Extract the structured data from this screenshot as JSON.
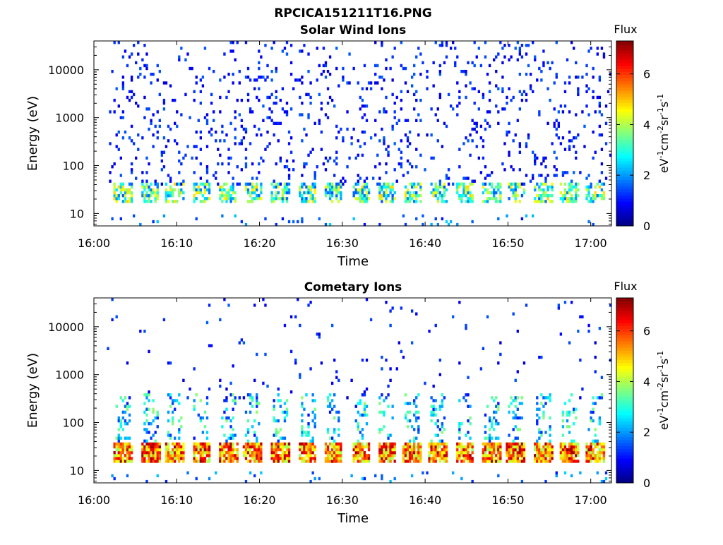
{
  "figure_title": "RPCICA151211T16.PNG",
  "colormap": "jet",
  "chart_data": [
    {
      "type": "heatmap",
      "title": "Solar Wind Ions",
      "xlabel": "Time",
      "ylabel": "Energy (eV)",
      "x_tick_labels": [
        "16:00",
        "16:10",
        "16:20",
        "16:30",
        "16:40",
        "16:50",
        "17:00"
      ],
      "xlim_minutes": [
        0,
        62.5
      ],
      "y_scale": "log",
      "ylim": [
        5.5,
        40000
      ],
      "y_tick_labels": [
        "10",
        "100",
        "1000",
        "10000"
      ],
      "y_tick_values": [
        10,
        100,
        1000,
        10000
      ],
      "colorbar": {
        "label": "eV-1cm-2sr-1s-1",
        "title": "Flux",
        "range": [
          0,
          7.3
        ],
        "tick_labels": [
          "0",
          "2",
          "4",
          "6"
        ],
        "tick_values": [
          0,
          2,
          4,
          6
        ]
      },
      "description": "Sparse low flux (~0.5-1.5) scattered from ~40 eV to 40 keV; higher flux (2-5) band near 20-40 eV in bursts roughly every 3 minutes"
    },
    {
      "type": "heatmap",
      "title": "Cometary Ions",
      "xlabel": "Time",
      "ylabel": "Energy (eV)",
      "x_tick_labels": [
        "16:00",
        "16:10",
        "16:20",
        "16:30",
        "16:40",
        "16:50",
        "17:00"
      ],
      "xlim_minutes": [
        0,
        62.5
      ],
      "y_scale": "log",
      "ylim": [
        5.5,
        40000
      ],
      "y_tick_labels": [
        "10",
        "100",
        "1000",
        "10000"
      ],
      "y_tick_values": [
        10,
        100,
        1000,
        10000
      ],
      "colorbar": {
        "label": "eV-1cm-2sr-1s-1",
        "title": "Flux",
        "range": [
          0,
          7.3
        ],
        "tick_labels": [
          "0",
          "2",
          "4",
          "6"
        ],
        "tick_values": [
          0,
          2,
          4,
          6
        ]
      },
      "description": "Intense flux (5-7) band at ~15-40 eV in periodic bursts every ~3 minutes starting 16:03; fainter 2-4 flux plumes extending up to ~300 eV and sparse counts to ~10 keV"
    }
  ],
  "bursts_minutes": [
    3.5,
    6.8,
    9.8,
    13.0,
    16.2,
    19.2,
    22.5,
    25.8,
    28.9,
    32.3,
    35.4,
    38.5,
    41.6,
    44.8,
    48.0,
    51.0,
    54.3,
    57.4,
    60.6
  ]
}
